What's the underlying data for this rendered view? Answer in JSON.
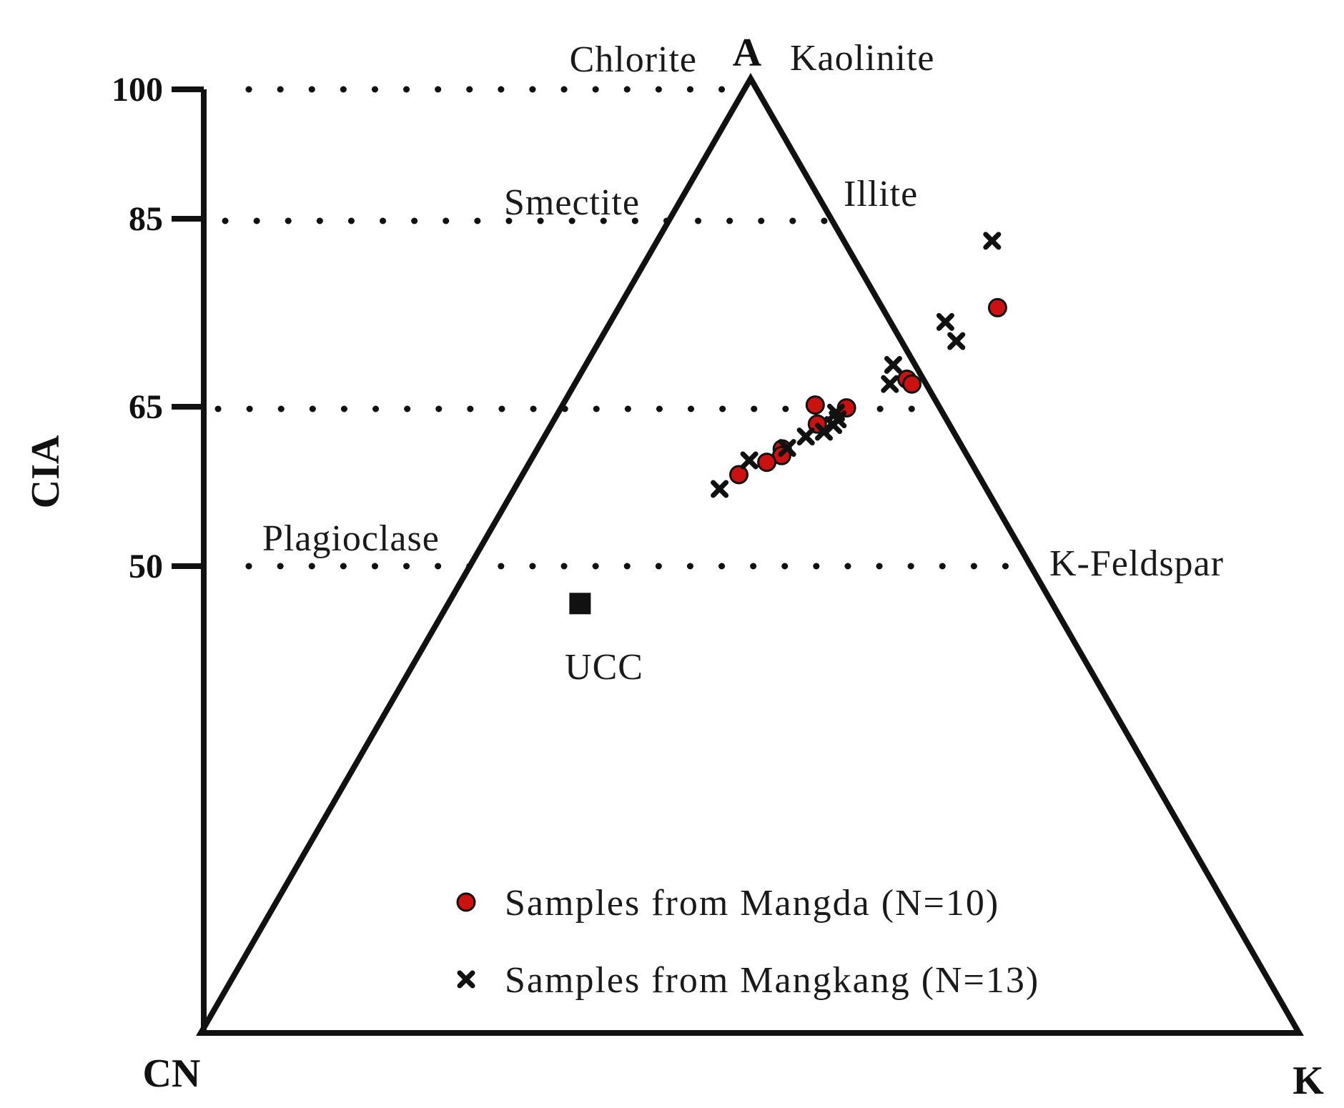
{
  "chart_data": {
    "type": "scatter",
    "diagram": "A-CN-K ternary",
    "vertices": {
      "top": "A",
      "left": "CN",
      "right": "K"
    },
    "y_axis": {
      "label": "CIA",
      "ticks": [
        100,
        85,
        65,
        50
      ],
      "range": [
        0,
        100
      ]
    },
    "reference_levels": [
      100,
      85,
      65,
      50
    ],
    "mineral_labels": {
      "chlorite": "Chlorite",
      "kaolinite": "Kaolinite",
      "smectite": "Smectite",
      "illite": "Illite",
      "plagioclase": "Plagioclase",
      "k_feldspar": "K-Feldspar"
    },
    "reference_point": {
      "label": "UCC",
      "A": 45,
      "K": 12
    },
    "series": [
      {
        "name": "Samples from Mangda (N=10)",
        "marker": "circle",
        "color": "#cc1111",
        "points": [
          {
            "A": 76,
            "K": 34.5
          },
          {
            "A": 68.5,
            "K": 30
          },
          {
            "A": 68,
            "K": 30.7
          },
          {
            "A": 65.5,
            "K": 26
          },
          {
            "A": 65.8,
            "K": 23
          },
          {
            "A": 61.2,
            "K": 22.3
          },
          {
            "A": 60.5,
            "K": 22.6
          },
          {
            "A": 59.8,
            "K": 21.6
          },
          {
            "A": 58.5,
            "K": 19.7
          },
          {
            "A": 63.8,
            "K": 24.2
          }
        ]
      },
      {
        "name": "Samples from Mangkang (N=13)",
        "marker": "cross",
        "color": "#111111",
        "points": [
          {
            "A": 83,
            "K": 30.5
          },
          {
            "A": 74.5,
            "K": 30.5
          },
          {
            "A": 72.5,
            "K": 32.5
          },
          {
            "A": 70,
            "K": 28
          },
          {
            "A": 68,
            "K": 28.7
          },
          {
            "A": 65,
            "K": 25.3
          },
          {
            "A": 64.3,
            "K": 25.8
          },
          {
            "A": 63.7,
            "K": 25.7
          },
          {
            "A": 63,
            "K": 25.2
          },
          {
            "A": 62.5,
            "K": 23.8
          },
          {
            "A": 61.3,
            "K": 22.7
          },
          {
            "A": 60,
            "K": 19.9
          },
          {
            "A": 57,
            "K": 18.7
          }
        ]
      }
    ]
  }
}
